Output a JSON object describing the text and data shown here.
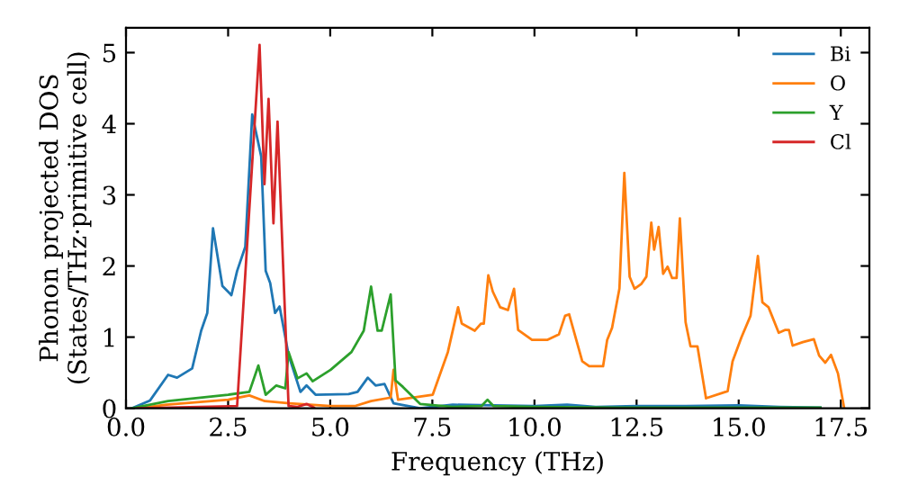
{
  "chart_data": {
    "type": "line",
    "xlabel": "Frequency (THz)",
    "ylabel": "Phonon projected DOS\n(States/THz·primitive cell)",
    "xlim": [
      0,
      18.2
    ],
    "ylim": [
      0,
      5.35
    ],
    "xticks": [
      {
        "value": 0,
        "label": "0.0"
      },
      {
        "value": 2.5,
        "label": "2.5"
      },
      {
        "value": 5,
        "label": "5.0"
      },
      {
        "value": 7.5,
        "label": "7.5"
      },
      {
        "value": 10,
        "label": "10.0"
      },
      {
        "value": 12.5,
        "label": "12.5"
      },
      {
        "value": 15,
        "label": "15.0"
      },
      {
        "value": 17.5,
        "label": "17.5"
      }
    ],
    "yticks": [
      0,
      1,
      2,
      3,
      4,
      5
    ],
    "grid": false,
    "legend": "top right",
    "line_style": "solid",
    "marker": "none",
    "series": [
      {
        "name": "Bi",
        "color": "#1f77b4",
        "x": [
          0.15,
          0.59,
          1.03,
          1.25,
          1.62,
          1.84,
          1.99,
          2.13,
          2.36,
          2.58,
          2.72,
          2.92,
          3.09,
          3.31,
          3.42,
          3.53,
          3.65,
          3.76,
          3.98,
          4.27,
          4.42,
          4.64,
          5.45,
          5.67,
          5.92,
          6.11,
          6.33,
          6.55,
          7.2,
          8.0,
          9.0,
          10.0,
          10.8,
          11.5,
          12.5,
          13.5,
          15.0,
          16.0,
          17.0
        ],
        "values": [
          0,
          0.11,
          0.47,
          0.43,
          0.56,
          1.09,
          1.34,
          2.53,
          1.72,
          1.59,
          1.93,
          2.27,
          4.13,
          3.54,
          1.93,
          1.76,
          1.34,
          1.43,
          0.75,
          0.23,
          0.32,
          0.19,
          0.2,
          0.23,
          0.43,
          0.32,
          0.34,
          0.07,
          0,
          0.05,
          0.04,
          0.03,
          0.05,
          0.02,
          0.03,
          0.03,
          0.04,
          0.02,
          0.01
        ]
      },
      {
        "name": "O",
        "color": "#ff7f0e",
        "x": [
          0.3,
          1.0,
          2.5,
          3.02,
          3.4,
          4.0,
          5.0,
          5.6,
          6.0,
          6.48,
          6.55,
          6.66,
          7.51,
          7.88,
          8.13,
          8.22,
          8.54,
          8.69,
          8.76,
          8.87,
          8.98,
          9.16,
          9.35,
          9.5,
          9.6,
          9.94,
          10.31,
          10.6,
          10.75,
          10.85,
          11.17,
          11.34,
          11.68,
          11.78,
          11.9,
          12.08,
          12.2,
          12.33,
          12.45,
          12.62,
          12.74,
          12.86,
          12.93,
          13.04,
          13.15,
          13.26,
          13.37,
          13.48,
          13.56,
          13.7,
          13.82,
          13.99,
          14.2,
          14.73,
          14.85,
          15.07,
          15.29,
          15.47,
          15.58,
          15.73,
          15.98,
          16.13,
          16.23,
          16.32,
          16.57,
          16.84,
          16.97,
          17.12,
          17.26,
          17.43,
          17.58
        ],
        "values": [
          0,
          0.05,
          0.12,
          0.18,
          0.1,
          0.07,
          0.03,
          0.03,
          0.1,
          0.15,
          0.54,
          0.12,
          0.19,
          0.79,
          1.42,
          1.19,
          1.09,
          1.19,
          1.19,
          1.87,
          1.64,
          1.42,
          1.38,
          1.68,
          1.1,
          0.96,
          0.96,
          1.04,
          1.3,
          1.32,
          0.66,
          0.59,
          0.59,
          0.96,
          1.13,
          1.68,
          3.31,
          1.85,
          1.68,
          1.75,
          1.85,
          2.61,
          2.23,
          2.55,
          1.89,
          1.99,
          1.83,
          1.83,
          2.67,
          1.21,
          0.87,
          0.87,
          0.14,
          0.24,
          0.66,
          1.0,
          1.3,
          2.14,
          1.49,
          1.42,
          1.06,
          1.1,
          1.1,
          0.88,
          0.93,
          0.97,
          0.74,
          0.64,
          0.75,
          0.49,
          0.01
        ]
      },
      {
        "name": "Y",
        "color": "#2ca02c",
        "x": [
          0.15,
          1.03,
          2.5,
          3.02,
          3.24,
          3.42,
          3.68,
          3.9,
          3.98,
          4.2,
          4.42,
          4.57,
          5.01,
          5.52,
          5.82,
          6.0,
          6.16,
          6.26,
          6.48,
          6.6,
          6.78,
          7.2,
          8.0,
          8.7,
          8.85,
          9.0,
          10.0,
          12.0,
          17.0
        ],
        "values": [
          0,
          0.1,
          0.19,
          0.23,
          0.6,
          0.19,
          0.32,
          0.28,
          0.79,
          0.42,
          0.49,
          0.38,
          0.54,
          0.79,
          1.09,
          1.71,
          1.09,
          1.09,
          1.6,
          0.39,
          0.3,
          0.06,
          0.02,
          0.03,
          0.12,
          0.03,
          0.02,
          0.01,
          0.01
        ]
      },
      {
        "name": "Cl",
        "color": "#d62728",
        "x": [
          0.3,
          2.72,
          3.27,
          3.39,
          3.49,
          3.61,
          3.71,
          3.98,
          4.2,
          4.42,
          4.6
        ],
        "values": [
          0,
          0.03,
          5.11,
          3.15,
          4.35,
          2.6,
          4.03,
          0.03,
          0.02,
          0.06,
          0.01
        ]
      }
    ]
  }
}
